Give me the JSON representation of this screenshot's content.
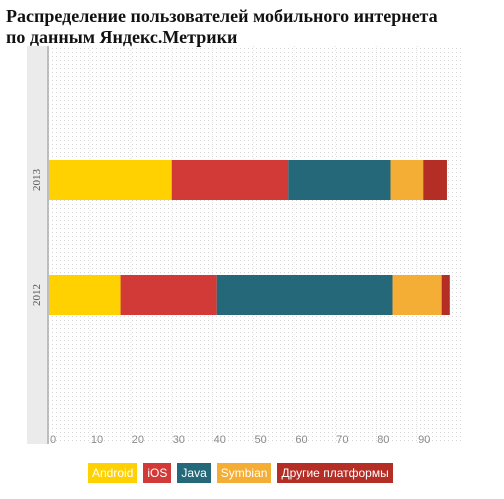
{
  "title_line1": "Распределение пользователей мобильного интернета",
  "title_line2": "по данным Яндекс.Метрики",
  "chart_data": {
    "type": "bar",
    "orientation": "horizontal",
    "stacked": true,
    "title": "Распределение пользователей мобильного интернета по данным Яндекс.Метрики",
    "xlabel": "",
    "ylabel": "",
    "xlim": [
      0,
      100
    ],
    "x_ticks": [
      0,
      10,
      20,
      30,
      40,
      50,
      60,
      70,
      80,
      90
    ],
    "grid": true,
    "legend_position": "bottom",
    "categories": [
      "2013",
      "2012"
    ],
    "series": [
      {
        "name": "Android",
        "color": "#ffd100",
        "values": [
          30,
          17.5
        ]
      },
      {
        "name": "iOS",
        "color": "#d23a37",
        "values": [
          28.5,
          23.5
        ]
      },
      {
        "name": "Java",
        "color": "#25687a",
        "values": [
          25,
          43
        ]
      },
      {
        "name": "Symbian",
        "color": "#f4ae35",
        "values": [
          8,
          12
        ]
      },
      {
        "name": "Другие платформы",
        "color": "#b42e26",
        "values": [
          5.8,
          2
        ]
      }
    ]
  }
}
